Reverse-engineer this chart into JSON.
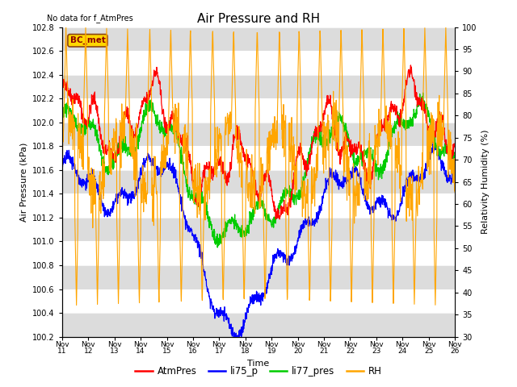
{
  "title": "Air Pressure and RH",
  "top_left_text": "No data for f_AtmPres",
  "station_label": "BC_met",
  "ylabel_left": "Air Pressure (kPa)",
  "ylabel_right": "Relativity Humidity (%)",
  "xlabel": "Time",
  "ylim_left": [
    100.2,
    102.8
  ],
  "ylim_right": [
    30,
    100
  ],
  "yticks_left": [
    100.2,
    100.4,
    100.6,
    100.8,
    101.0,
    101.2,
    101.4,
    101.6,
    101.8,
    102.0,
    102.2,
    102.4,
    102.6,
    102.8
  ],
  "yticks_right": [
    30,
    35,
    40,
    45,
    50,
    55,
    60,
    65,
    70,
    75,
    80,
    85,
    90,
    95,
    100
  ],
  "xtick_positions": [
    0,
    1,
    2,
    3,
    4,
    5,
    6,
    7,
    8,
    9,
    10,
    11,
    12,
    13,
    14,
    15
  ],
  "xtick_labels": [
    "Nov 11",
    "Nov 12",
    "Nov 13",
    "Nov 14",
    "Nov 15",
    "Nov 16",
    "Nov 17",
    "Nov 18",
    "Nov 19",
    "Nov 20",
    "Nov 21",
    "Nov 22",
    "Nov 23",
    "Nov 24",
    "Nov 25",
    "Nov 26"
  ],
  "colors": {
    "AtmPres": "#FF0000",
    "li75_p": "#0000FF",
    "li77_pres": "#00CC00",
    "RH": "#FFA500",
    "background": "#FFFFFF",
    "grid_band": "#DCDCDC"
  },
  "legend_entries": [
    "AtmPres",
    "li75_p",
    "li77_pres",
    "RH"
  ],
  "title_fontsize": 11,
  "label_fontsize": 8,
  "tick_fontsize": 7,
  "xtick_fontsize": 6.5
}
